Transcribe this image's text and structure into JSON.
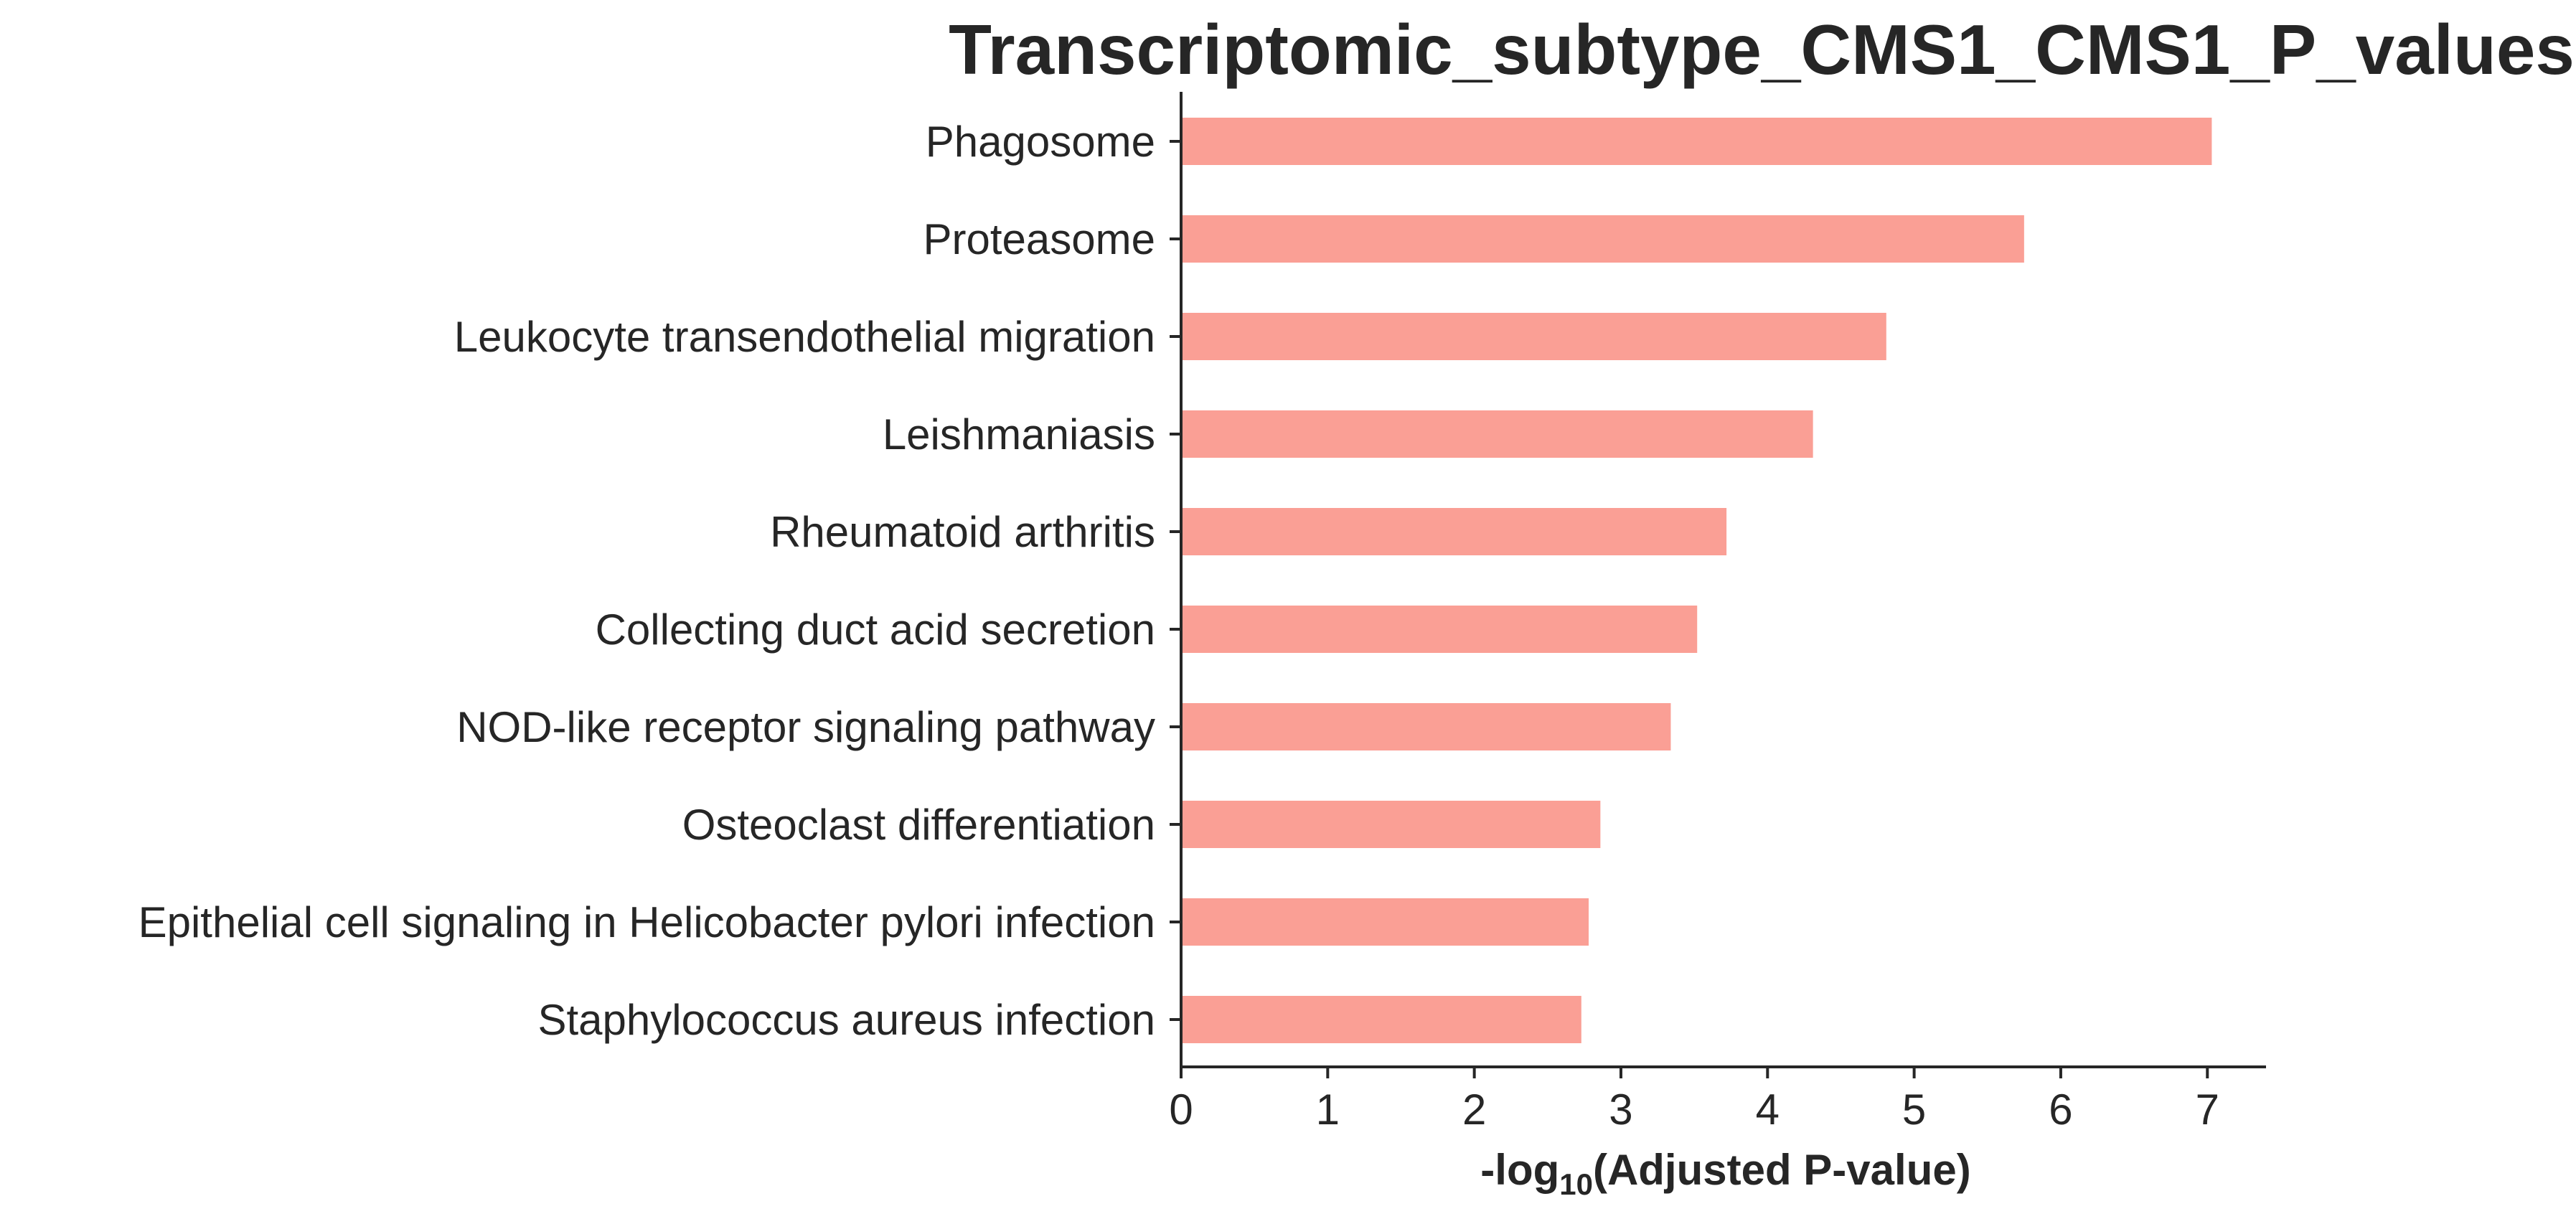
{
  "chart_data": {
    "type": "bar",
    "orientation": "horizontal",
    "title": "Transcriptomic_subtype_CMS1_CMS1_P_values",
    "xlabel": {
      "prefix": "-log",
      "subscript": "10",
      "suffix": "(Adjusted P-value)"
    },
    "ylabel": "",
    "categories": [
      "Phagosome",
      "Proteasome",
      "Leukocyte transendothelial migration",
      "Leishmaniasis",
      "Rheumatoid arthritis",
      "Collecting duct acid secretion",
      "NOD-like receptor signaling pathway",
      "Osteoclast differentiation",
      "Epithelial cell signaling in Helicobacter pylori infection",
      "Staphylococcus aureus infection"
    ],
    "values": [
      7.03,
      5.75,
      4.81,
      4.31,
      3.72,
      3.52,
      3.34,
      2.86,
      2.78,
      2.73
    ],
    "xlim": [
      0,
      7.4
    ],
    "xticks": [
      "0",
      "1",
      "2",
      "3",
      "4",
      "5",
      "6",
      "7"
    ],
    "bar_color": "#fa9f95",
    "axis_color": "#262626",
    "grid": false,
    "legend": "none"
  }
}
